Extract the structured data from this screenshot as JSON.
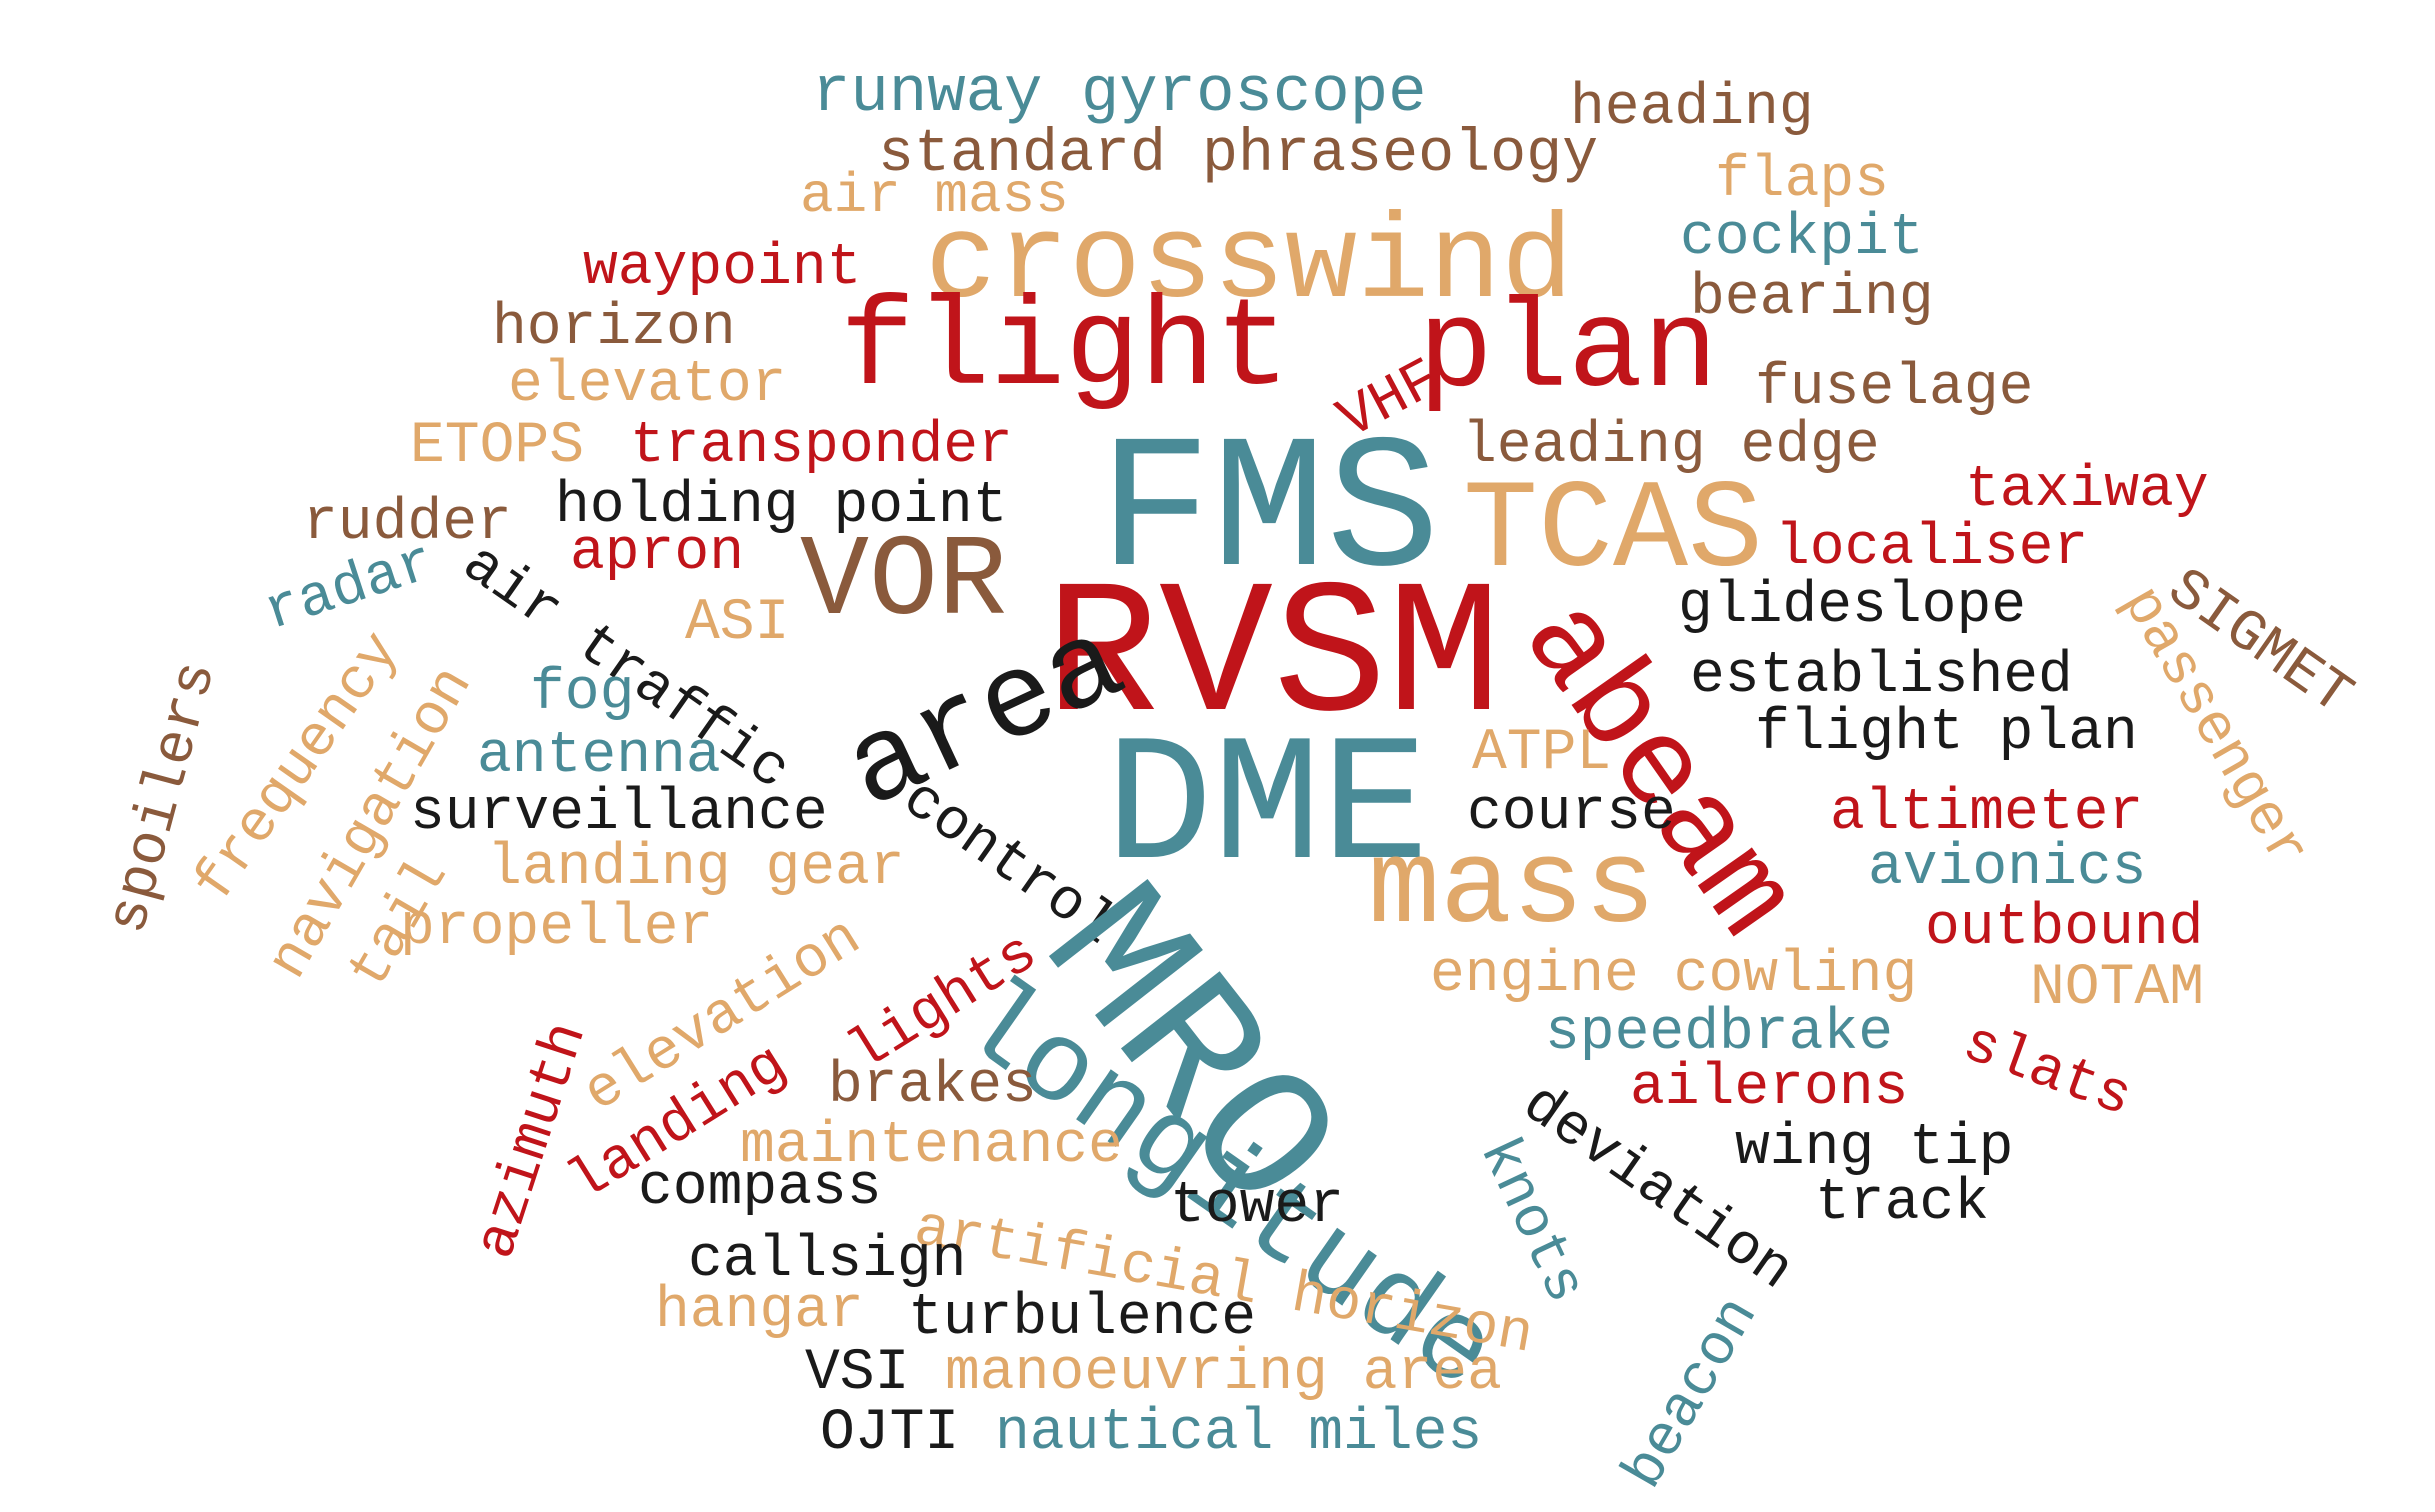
{
  "palette": {
    "red": "#c0141a",
    "teal": "#4a8b97",
    "tan": "#e0a86a",
    "brown": "#8a5a3c",
    "black": "#1a1a1a"
  },
  "words": [
    {
      "text": "runway gyroscope",
      "color": "teal"
    },
    {
      "text": "heading",
      "color": "brown"
    },
    {
      "text": "standard phraseology",
      "color": "brown"
    },
    {
      "text": "air mass",
      "color": "tan"
    },
    {
      "text": "flaps",
      "color": "tan"
    },
    {
      "text": "crosswind",
      "color": "tan"
    },
    {
      "text": "cockpit",
      "color": "teal"
    },
    {
      "text": "waypoint",
      "color": "red"
    },
    {
      "text": "bearing",
      "color": "brown"
    },
    {
      "text": "horizon",
      "color": "brown"
    },
    {
      "text": "flight",
      "color": "red"
    },
    {
      "text": "plan",
      "color": "red"
    },
    {
      "text": "elevator",
      "color": "tan"
    },
    {
      "text": "fuselage",
      "color": "brown"
    },
    {
      "text": "VHF",
      "color": "red"
    },
    {
      "text": "ETOPS",
      "color": "tan"
    },
    {
      "text": "transponder",
      "color": "red"
    },
    {
      "text": "leading edge",
      "color": "brown"
    },
    {
      "text": "FMS",
      "color": "teal"
    },
    {
      "text": "taxiway",
      "color": "red"
    },
    {
      "text": "rudder",
      "color": "brown"
    },
    {
      "text": "holding point",
      "color": "black"
    },
    {
      "text": "TCAS",
      "color": "tan"
    },
    {
      "text": "localiser",
      "color": "red"
    },
    {
      "text": "apron",
      "color": "red"
    },
    {
      "text": "VOR",
      "color": "brown"
    },
    {
      "text": "radar",
      "color": "teal"
    },
    {
      "text": "air traffic",
      "color": "black"
    },
    {
      "text": "RVSM",
      "color": "red"
    },
    {
      "text": "glideslope",
      "color": "black"
    },
    {
      "text": "passenger",
      "color": "tan"
    },
    {
      "text": "SIGMET",
      "color": "brown"
    },
    {
      "text": "ASI",
      "color": "tan"
    },
    {
      "text": "spoilers",
      "color": "brown"
    },
    {
      "text": "abeam",
      "color": "red"
    },
    {
      "text": "established",
      "color": "black"
    },
    {
      "text": "fog",
      "color": "teal"
    },
    {
      "text": "frequency",
      "color": "tan"
    },
    {
      "text": "area",
      "color": "black"
    },
    {
      "text": "navigation",
      "color": "tan"
    },
    {
      "text": "antenna",
      "color": "teal"
    },
    {
      "text": "ATPL",
      "color": "tan"
    },
    {
      "text": "flight plan",
      "color": "black"
    },
    {
      "text": "DME",
      "color": "teal"
    },
    {
      "text": "surveillance",
      "color": "black"
    },
    {
      "text": "control",
      "color": "black"
    },
    {
      "text": "course",
      "color": "black"
    },
    {
      "text": "altimeter",
      "color": "red"
    },
    {
      "text": "tail",
      "color": "tan"
    },
    {
      "text": "landing gear",
      "color": "tan"
    },
    {
      "text": "mass",
      "color": "tan"
    },
    {
      "text": "avionics",
      "color": "teal"
    },
    {
      "text": "propeller",
      "color": "tan"
    },
    {
      "text": "outbound",
      "color": "red"
    },
    {
      "text": "MRO",
      "color": "teal"
    },
    {
      "text": "elevation",
      "color": "tan"
    },
    {
      "text": "lights",
      "color": "red"
    },
    {
      "text": "engine cowling",
      "color": "tan"
    },
    {
      "text": "NOTAM",
      "color": "tan"
    },
    {
      "text": "azimuth",
      "color": "red"
    },
    {
      "text": "longitude",
      "color": "teal"
    },
    {
      "text": "speedbrake",
      "color": "teal"
    },
    {
      "text": "slats",
      "color": "red"
    },
    {
      "text": "brakes",
      "color": "brown"
    },
    {
      "text": "deviation",
      "color": "black"
    },
    {
      "text": "ailerons",
      "color": "red"
    },
    {
      "text": "landing",
      "color": "red"
    },
    {
      "text": "maintenance",
      "color": "tan"
    },
    {
      "text": "knots",
      "color": "teal"
    },
    {
      "text": "wing tip",
      "color": "black"
    },
    {
      "text": "compass",
      "color": "black"
    },
    {
      "text": "tower",
      "color": "black"
    },
    {
      "text": "track",
      "color": "black"
    },
    {
      "text": "artificial horizon",
      "color": "tan"
    },
    {
      "text": "callsign",
      "color": "black"
    },
    {
      "text": "hangar",
      "color": "tan"
    },
    {
      "text": "turbulence",
      "color": "black"
    },
    {
      "text": "beacon",
      "color": "teal"
    },
    {
      "text": "VSI",
      "color": "black"
    },
    {
      "text": "manoeuvring area",
      "color": "tan"
    },
    {
      "text": "OJTI",
      "color": "black"
    },
    {
      "text": "nautical miles",
      "color": "teal"
    }
  ]
}
